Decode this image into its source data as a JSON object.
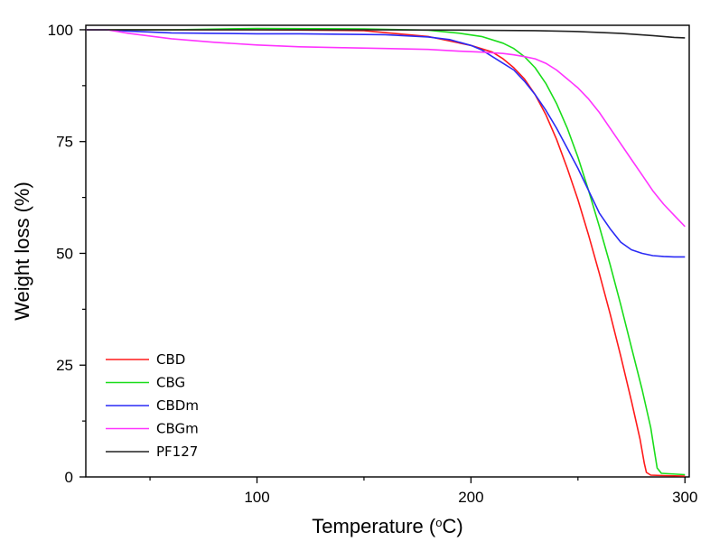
{
  "chart_data": {
    "type": "line",
    "title": "",
    "xlabel": "Temperature",
    "xlabel_unit_prefix": "(",
    "xlabel_unit_sup": "o",
    "xlabel_unit_suffix": "C)",
    "ylabel": "Weight loss (%)",
    "xlim": [
      20,
      302
    ],
    "ylim": [
      0,
      101
    ],
    "xticks": [
      100,
      200,
      300
    ],
    "yticks": [
      0,
      25,
      50,
      75,
      100
    ],
    "grid": false,
    "legend_position": "bottom-left",
    "series": [
      {
        "name": "CBD",
        "color": "#ff1a1a",
        "points": [
          [
            20,
            100
          ],
          [
            30,
            100
          ],
          [
            60,
            100
          ],
          [
            100,
            100
          ],
          [
            150,
            99.8
          ],
          [
            180,
            98.5
          ],
          [
            200,
            96.5
          ],
          [
            210,
            95
          ],
          [
            215,
            93.5
          ],
          [
            220,
            91.5
          ],
          [
            225,
            89
          ],
          [
            230,
            85.5
          ],
          [
            235,
            81
          ],
          [
            240,
            75.5
          ],
          [
            245,
            69
          ],
          [
            250,
            62
          ],
          [
            255,
            54
          ],
          [
            260,
            45.5
          ],
          [
            265,
            36.5
          ],
          [
            270,
            27
          ],
          [
            275,
            17
          ],
          [
            279,
            8.5
          ],
          [
            281,
            3
          ],
          [
            282,
            1
          ],
          [
            284,
            0.4
          ],
          [
            290,
            0.3
          ],
          [
            300,
            0.2
          ]
        ]
      },
      {
        "name": "CBG",
        "color": "#1add1a",
        "points": [
          [
            20,
            100
          ],
          [
            30,
            100
          ],
          [
            60,
            100
          ],
          [
            100,
            100.3
          ],
          [
            150,
            100.2
          ],
          [
            180,
            99.9
          ],
          [
            195,
            99.2
          ],
          [
            205,
            98.5
          ],
          [
            215,
            97
          ],
          [
            220,
            95.8
          ],
          [
            225,
            94
          ],
          [
            230,
            91.5
          ],
          [
            235,
            88
          ],
          [
            240,
            83.5
          ],
          [
            245,
            78
          ],
          [
            250,
            71.5
          ],
          [
            255,
            64
          ],
          [
            260,
            56
          ],
          [
            265,
            47.5
          ],
          [
            270,
            38.5
          ],
          [
            275,
            29
          ],
          [
            280,
            19.5
          ],
          [
            284,
            11
          ],
          [
            286,
            5
          ],
          [
            287,
            2
          ],
          [
            289,
            0.8
          ],
          [
            300,
            0.5
          ]
        ]
      },
      {
        "name": "CBDm",
        "color": "#2a2af5",
        "points": [
          [
            20,
            100
          ],
          [
            30,
            100
          ],
          [
            40,
            99.7
          ],
          [
            60,
            99.3
          ],
          [
            80,
            99.2
          ],
          [
            100,
            99.1
          ],
          [
            120,
            99.1
          ],
          [
            140,
            99
          ],
          [
            160,
            98.9
          ],
          [
            180,
            98.4
          ],
          [
            190,
            97.8
          ],
          [
            200,
            96.5
          ],
          [
            205,
            95.5
          ],
          [
            210,
            94
          ],
          [
            215,
            92.5
          ],
          [
            220,
            91
          ],
          [
            225,
            88.5
          ],
          [
            230,
            85.5
          ],
          [
            235,
            82
          ],
          [
            240,
            78
          ],
          [
            245,
            73.5
          ],
          [
            250,
            69
          ],
          [
            255,
            64
          ],
          [
            260,
            59
          ],
          [
            265,
            55.5
          ],
          [
            270,
            52.5
          ],
          [
            275,
            50.8
          ],
          [
            280,
            50
          ],
          [
            285,
            49.5
          ],
          [
            290,
            49.3
          ],
          [
            295,
            49.2
          ],
          [
            300,
            49.2
          ]
        ]
      },
      {
        "name": "CBGm",
        "color": "#ff33ff",
        "points": [
          [
            20,
            100
          ],
          [
            30,
            100
          ],
          [
            40,
            99.2
          ],
          [
            60,
            98
          ],
          [
            80,
            97.2
          ],
          [
            100,
            96.6
          ],
          [
            120,
            96.2
          ],
          [
            140,
            96
          ],
          [
            160,
            95.8
          ],
          [
            180,
            95.6
          ],
          [
            195,
            95.2
          ],
          [
            205,
            95
          ],
          [
            215,
            94.7
          ],
          [
            220,
            94.4
          ],
          [
            225,
            94
          ],
          [
            230,
            93.5
          ],
          [
            235,
            92.5
          ],
          [
            240,
            91
          ],
          [
            245,
            89
          ],
          [
            250,
            87
          ],
          [
            255,
            84.5
          ],
          [
            260,
            81.5
          ],
          [
            265,
            78
          ],
          [
            270,
            74.5
          ],
          [
            275,
            71
          ],
          [
            280,
            67.5
          ],
          [
            285,
            64
          ],
          [
            290,
            61
          ],
          [
            295,
            58.5
          ],
          [
            300,
            56
          ]
        ]
      },
      {
        "name": "PF127",
        "color": "#222222",
        "points": [
          [
            20,
            100
          ],
          [
            30,
            100
          ],
          [
            60,
            100
          ],
          [
            100,
            100
          ],
          [
            150,
            100
          ],
          [
            200,
            99.9
          ],
          [
            230,
            99.8
          ],
          [
            250,
            99.6
          ],
          [
            270,
            99.2
          ],
          [
            285,
            98.7
          ],
          [
            295,
            98.3
          ],
          [
            300,
            98.2
          ]
        ]
      }
    ]
  }
}
